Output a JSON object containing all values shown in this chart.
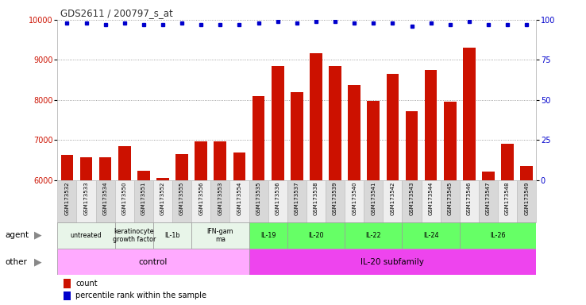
{
  "title": "GDS2611 / 200797_s_at",
  "samples": [
    "GSM173532",
    "GSM173533",
    "GSM173534",
    "GSM173550",
    "GSM173551",
    "GSM173552",
    "GSM173555",
    "GSM173556",
    "GSM173553",
    "GSM173554",
    "GSM173535",
    "GSM173536",
    "GSM173537",
    "GSM173538",
    "GSM173539",
    "GSM173540",
    "GSM173541",
    "GSM173542",
    "GSM173543",
    "GSM173544",
    "GSM173545",
    "GSM173546",
    "GSM173547",
    "GSM173548",
    "GSM173549"
  ],
  "counts": [
    6630,
    6560,
    6560,
    6840,
    6220,
    6060,
    6640,
    6960,
    6960,
    6680,
    8100,
    8840,
    8190,
    9160,
    8840,
    8370,
    7980,
    8650,
    7720,
    8740,
    7960,
    9310,
    6210,
    6900,
    6340
  ],
  "percentile_ranks": [
    98,
    98,
    97,
    98,
    97,
    97,
    98,
    97,
    97,
    97,
    98,
    99,
    98,
    99,
    99,
    98,
    98,
    98,
    96,
    98,
    97,
    99,
    97,
    97,
    97
  ],
  "ylim_left": [
    6000,
    10000
  ],
  "ylim_right": [
    0,
    100
  ],
  "yticks_left": [
    6000,
    7000,
    8000,
    9000,
    10000
  ],
  "yticks_right": [
    0,
    25,
    50,
    75,
    100
  ],
  "agent_groups": [
    {
      "label": "untreated",
      "start": 0,
      "end": 3,
      "color": "#e8f5e9"
    },
    {
      "label": "keratinocyte\ngrowth factor",
      "start": 3,
      "end": 5,
      "color": "#e8f5e9"
    },
    {
      "label": "IL-1b",
      "start": 5,
      "end": 7,
      "color": "#e8f5e9"
    },
    {
      "label": "IFN-gam\nma",
      "start": 7,
      "end": 10,
      "color": "#e8f5e9"
    },
    {
      "label": "IL-19",
      "start": 10,
      "end": 12,
      "color": "#66ff66"
    },
    {
      "label": "IL-20",
      "start": 12,
      "end": 15,
      "color": "#66ff66"
    },
    {
      "label": "IL-22",
      "start": 15,
      "end": 18,
      "color": "#66ff66"
    },
    {
      "label": "IL-24",
      "start": 18,
      "end": 21,
      "color": "#66ff66"
    },
    {
      "label": "IL-26",
      "start": 21,
      "end": 25,
      "color": "#66ff66"
    }
  ],
  "other_groups": [
    {
      "label": "control",
      "start": 0,
      "end": 10,
      "color": "#ffaaff"
    },
    {
      "label": "IL-20 subfamily",
      "start": 10,
      "end": 25,
      "color": "#ee44ee"
    }
  ],
  "bar_color": "#cc1100",
  "dot_color": "#0000cc",
  "background_color": "#ffffff",
  "grid_color": "#888888",
  "title_color": "#333333",
  "left_axis_color": "#cc1100",
  "right_axis_color": "#0000cc",
  "sample_bg_even": "#d8d8d8",
  "sample_bg_odd": "#eeeeee"
}
